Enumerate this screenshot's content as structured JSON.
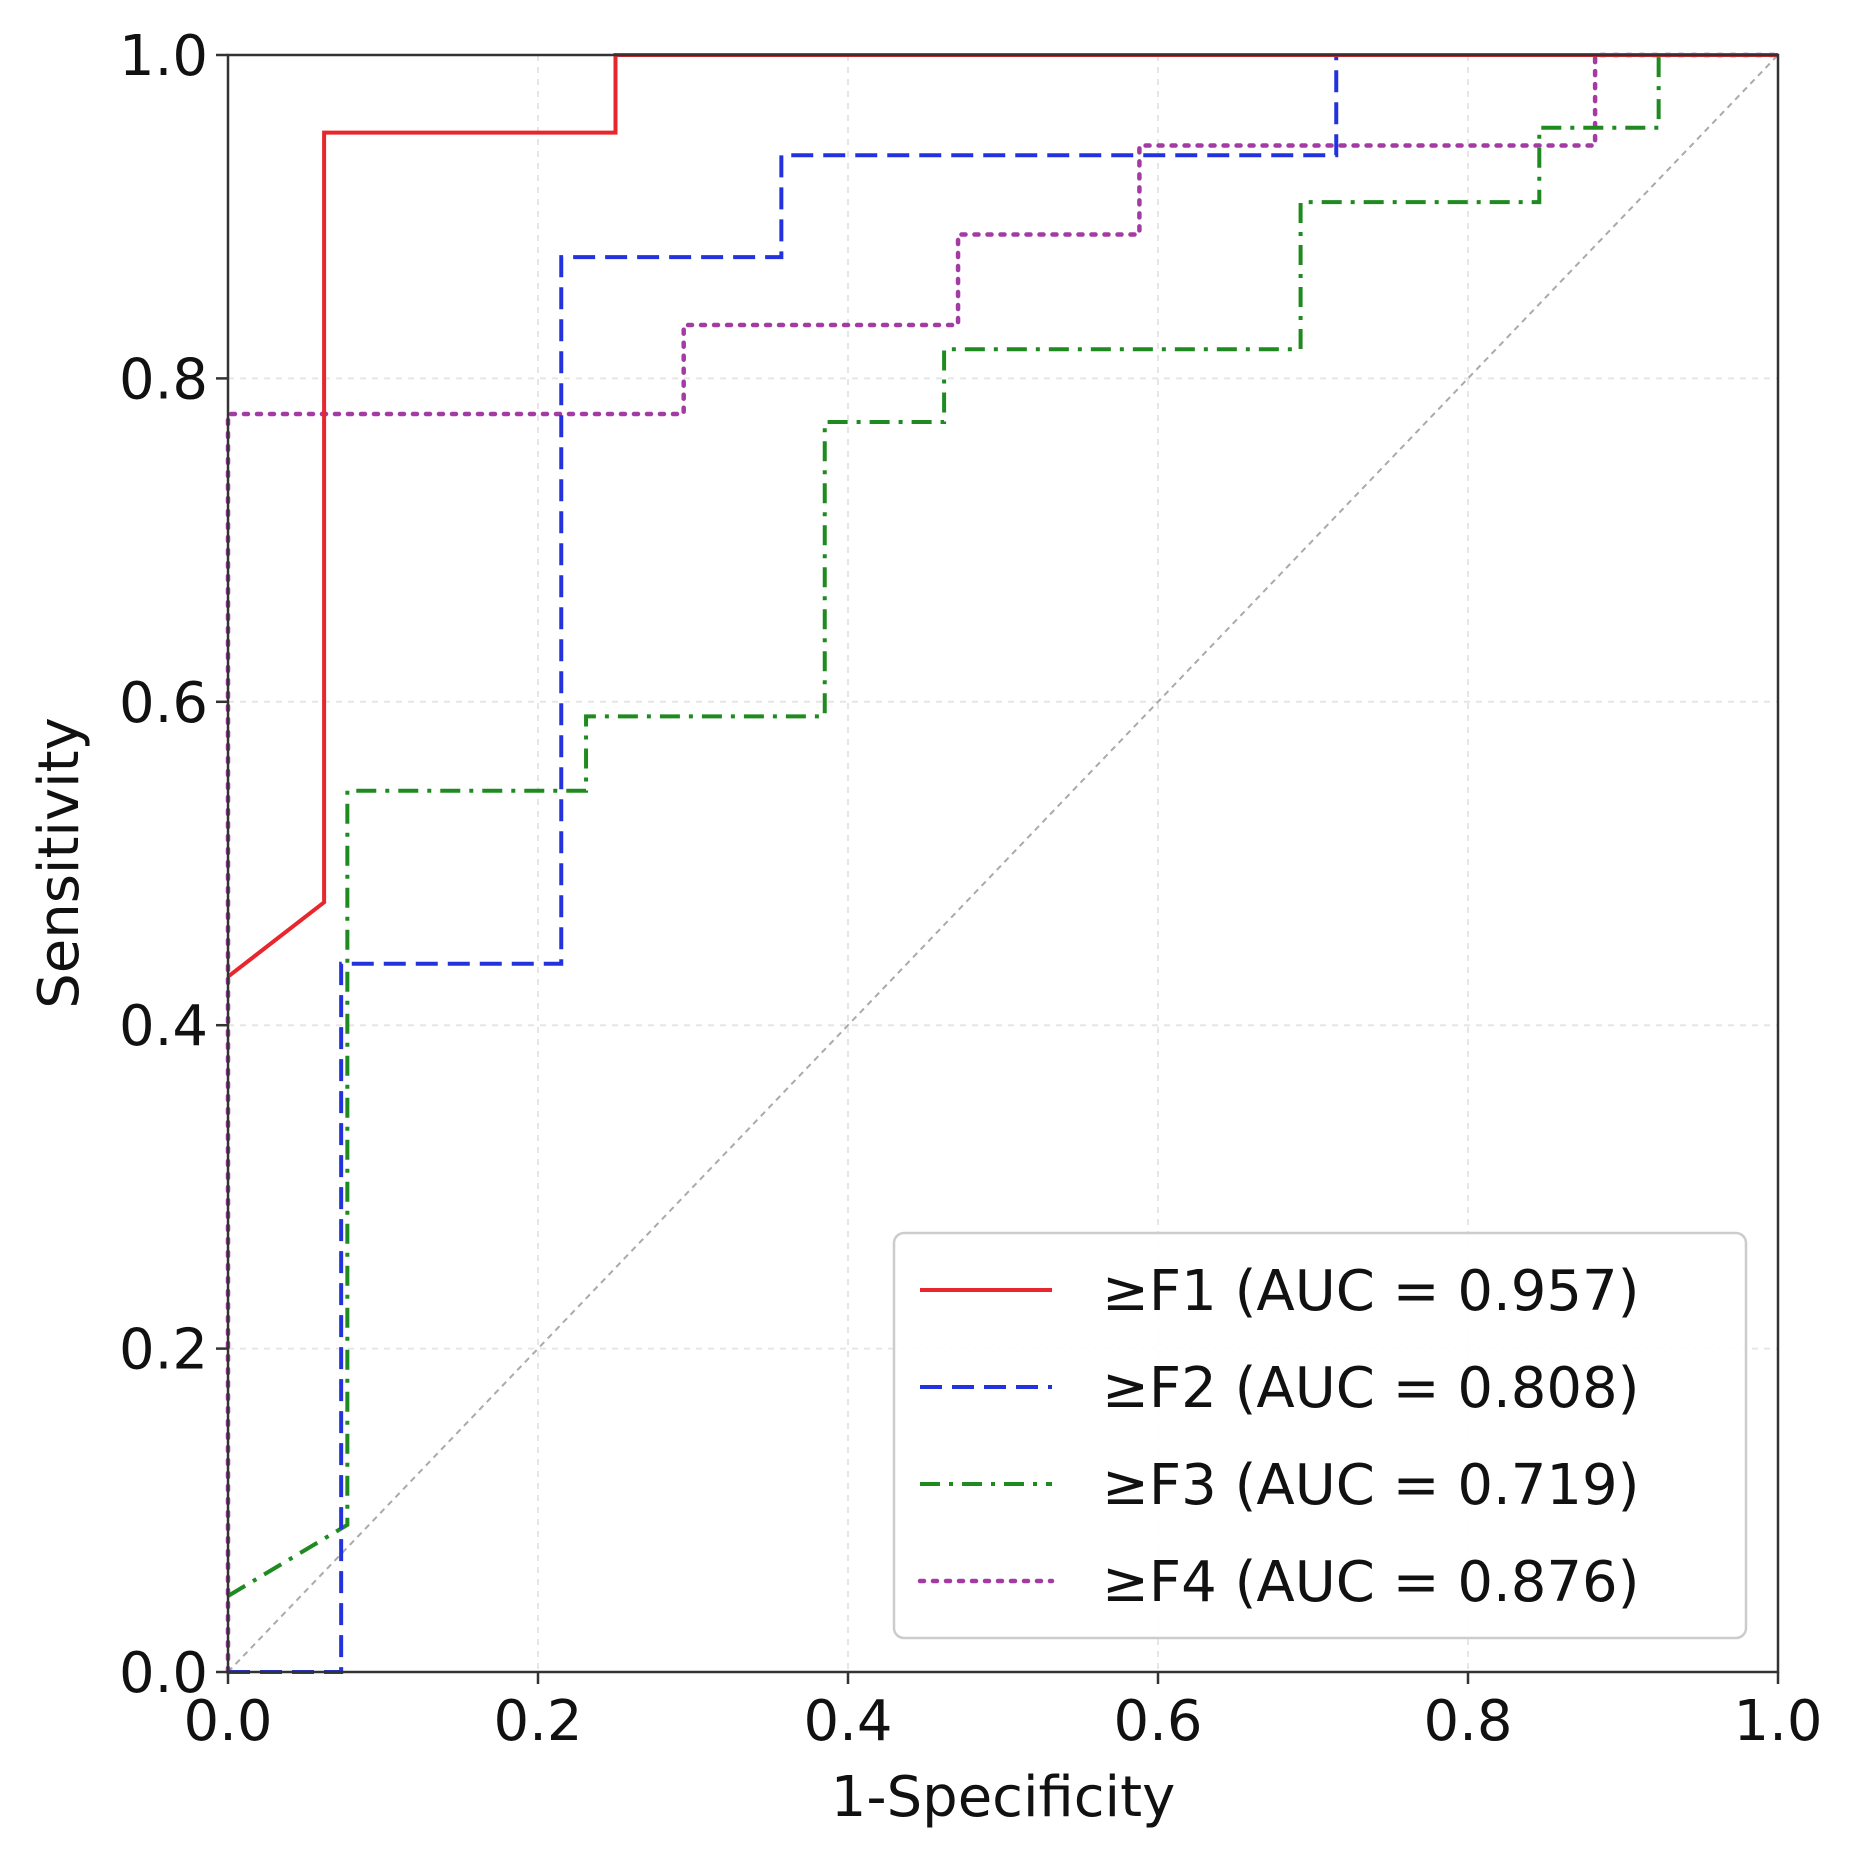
{
  "chart_data": {
    "type": "line",
    "title": "",
    "xlabel": "1-Specificity",
    "ylabel": "Sensitivity",
    "xlim": [
      0.0,
      1.0
    ],
    "ylim": [
      0.0,
      1.0
    ],
    "grid": true,
    "legend_position": "bottom-right",
    "x_ticks": [
      "0.0",
      "0.2",
      "0.4",
      "0.6",
      "0.8",
      "1.0"
    ],
    "y_ticks": [
      "0.0",
      "0.2",
      "0.4",
      "0.6",
      "0.8",
      "1.0"
    ],
    "series": [
      {
        "name": "≥F1 (AUC = 0.957)",
        "color": "#e8262d",
        "style": "solid",
        "points": [
          [
            0.0,
            0.43
          ],
          [
            0.062,
            0.476
          ],
          [
            0.062,
            0.952
          ],
          [
            0.25,
            0.952
          ],
          [
            0.25,
            1.0
          ],
          [
            1.0,
            1.0
          ]
        ]
      },
      {
        "name": "≥F2 (AUC = 0.808)",
        "color": "#2233dd",
        "style": "dashed",
        "points": [
          [
            0.0,
            0.0
          ],
          [
            0.073,
            0.0
          ],
          [
            0.073,
            0.438
          ],
          [
            0.215,
            0.438
          ],
          [
            0.215,
            0.875
          ],
          [
            0.357,
            0.875
          ],
          [
            0.357,
            0.938
          ],
          [
            0.715,
            0.938
          ],
          [
            0.715,
            1.0
          ],
          [
            1.0,
            1.0
          ]
        ]
      },
      {
        "name": "≥F3 (AUC = 0.719)",
        "color": "#1f8a1f",
        "style": "dashdot",
        "points": [
          [
            0.0,
            0.047
          ],
          [
            0.077,
            0.091
          ],
          [
            0.077,
            0.545
          ],
          [
            0.231,
            0.545
          ],
          [
            0.231,
            0.591
          ],
          [
            0.385,
            0.591
          ],
          [
            0.385,
            0.773
          ],
          [
            0.462,
            0.773
          ],
          [
            0.462,
            0.818
          ],
          [
            0.692,
            0.818
          ],
          [
            0.692,
            0.909
          ],
          [
            0.846,
            0.909
          ],
          [
            0.846,
            0.955
          ],
          [
            0.923,
            0.955
          ],
          [
            0.923,
            1.0
          ],
          [
            1.0,
            1.0
          ]
        ]
      },
      {
        "name": "≥F4 (AUC = 0.876)",
        "color": "#a43aa4",
        "style": "dotted",
        "points": [
          [
            0.0,
            0.0
          ],
          [
            0.0,
            0.778
          ],
          [
            0.294,
            0.778
          ],
          [
            0.294,
            0.833
          ],
          [
            0.471,
            0.833
          ],
          [
            0.471,
            0.889
          ],
          [
            0.588,
            0.889
          ],
          [
            0.588,
            0.944
          ],
          [
            0.882,
            0.944
          ],
          [
            0.882,
            1.0
          ],
          [
            1.0,
            1.0
          ]
        ]
      }
    ],
    "reference_line": {
      "name": "chance-diagonal",
      "color": "#aaaaaa",
      "points": [
        [
          0.0,
          0.0
        ],
        [
          1.0,
          1.0
        ]
      ]
    }
  }
}
